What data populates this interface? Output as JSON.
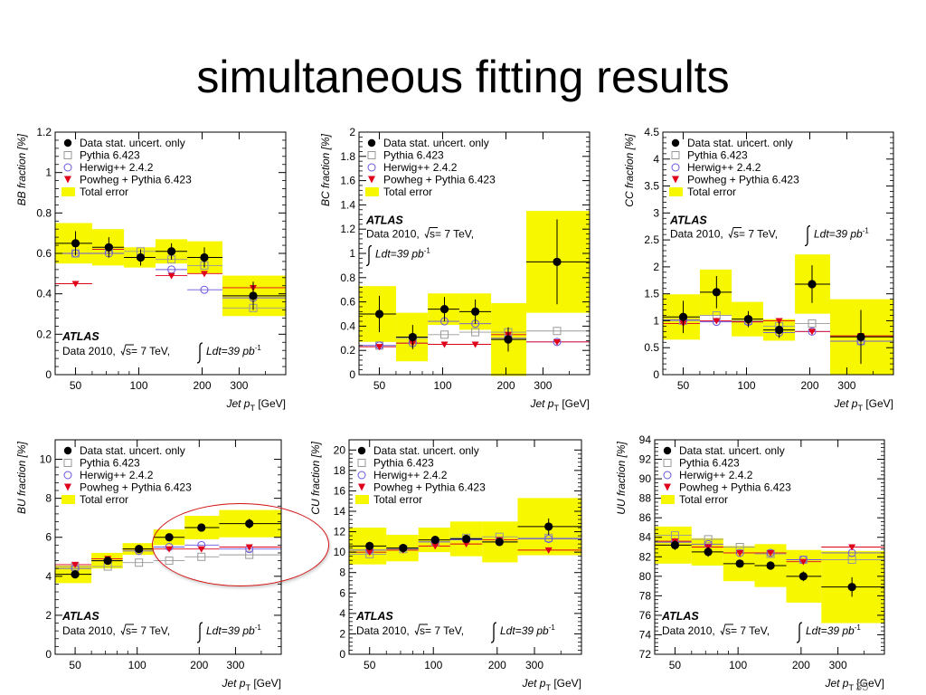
{
  "slide": {
    "title": "simultaneous fitting results",
    "page_number": "35",
    "highlight_color": "#d11111"
  },
  "legend": {
    "data": "Data stat. uncert. only",
    "pythia": "Pythia 6.423",
    "herwig": "Herwig++ 2.4.2",
    "powheg": "Powheg + Pythia 6.423",
    "total": "Total error"
  },
  "labels": {
    "atlas": "ATLAS",
    "data2010": "Data 2010,",
    "sqrt_s": "s= 7 TeV,",
    "ldt": "Ldt=39 pb",
    "ldt_sup": "-1",
    "xlabel": "Jet p",
    "xlabel_sub": "T",
    "xlabel_unit": " [GeV]"
  },
  "colors": {
    "band": "#f7f700",
    "data": "#000000",
    "pythia": "#999999",
    "herwig": "#6b55e0",
    "powheg": "#e0001b"
  },
  "chart_data": [
    {
      "id": "BB",
      "type": "scatter",
      "ylabel": "BB fraction [%]",
      "ylim": [
        0,
        1.2
      ],
      "yticks": [
        0,
        0.2,
        0.4,
        0.6,
        0.8,
        1,
        1.2
      ],
      "xlim": [
        40,
        500
      ],
      "xticks": [
        50,
        100,
        200,
        300
      ],
      "log_x": true,
      "bins": [
        [
          40,
          60
        ],
        [
          60,
          85
        ],
        [
          85,
          120
        ],
        [
          120,
          170
        ],
        [
          170,
          250
        ],
        [
          250,
          500
        ]
      ],
      "x": [
        50,
        72,
        102,
        143,
        205,
        350
      ],
      "data": [
        0.65,
        0.63,
        0.58,
        0.61,
        0.58,
        0.39
      ],
      "stat_err": [
        0.06,
        0.05,
        0.04,
        0.04,
        0.05,
        0.07
      ],
      "total_err": [
        0.1,
        0.09,
        0.05,
        0.06,
        0.08,
        0.1
      ],
      "pythia": [
        0.6,
        0.62,
        0.61,
        0.57,
        0.54,
        0.33
      ],
      "herwig": [
        0.6,
        0.6,
        0.58,
        0.52,
        0.42,
        0.38
      ],
      "powheg": [
        0.45,
        0.62,
        0.58,
        0.49,
        0.5,
        0.43
      ],
      "atlas_position": "bottom-left"
    },
    {
      "id": "BC",
      "type": "scatter",
      "ylabel": "BC fraction [%]",
      "ylim": [
        0,
        2
      ],
      "yticks": [
        0,
        0.2,
        0.4,
        0.6,
        0.8,
        1,
        1.2,
        1.4,
        1.6,
        1.8,
        2
      ],
      "xlim": [
        40,
        500
      ],
      "xticks": [
        50,
        100,
        200,
        300
      ],
      "log_x": true,
      "bins": [
        [
          40,
          60
        ],
        [
          60,
          85
        ],
        [
          85,
          120
        ],
        [
          120,
          170
        ],
        [
          170,
          250
        ],
        [
          250,
          500
        ]
      ],
      "x": [
        50,
        72,
        102,
        143,
        205,
        350
      ],
      "data": [
        0.5,
        0.31,
        0.54,
        0.52,
        0.29,
        0.93
      ],
      "stat_err": [
        0.15,
        0.1,
        0.1,
        0.1,
        0.1,
        0.35
      ],
      "total_err": [
        0.23,
        0.2,
        0.13,
        0.15,
        0.3,
        0.42
      ],
      "pythia": [
        0.24,
        0.3,
        0.33,
        0.35,
        0.35,
        0.36
      ],
      "herwig": [
        0.24,
        0.26,
        0.44,
        0.42,
        0.3,
        0.27
      ],
      "powheg": [
        0.23,
        0.26,
        0.25,
        0.25,
        0.33,
        0.27
      ],
      "atlas_position": "top-left"
    },
    {
      "id": "CC",
      "type": "scatter",
      "ylabel": "CC fraction [%]",
      "ylim": [
        0,
        4.5
      ],
      "yticks": [
        0,
        0.5,
        1,
        1.5,
        2,
        2.5,
        3,
        3.5,
        4,
        4.5
      ],
      "xlim": [
        40,
        500
      ],
      "xticks": [
        50,
        100,
        200,
        300
      ],
      "log_x": true,
      "bins": [
        [
          40,
          60
        ],
        [
          60,
          85
        ],
        [
          85,
          120
        ],
        [
          120,
          170
        ],
        [
          170,
          250
        ],
        [
          250,
          500
        ]
      ],
      "x": [
        50,
        72,
        102,
        143,
        205,
        350
      ],
      "data": [
        1.07,
        1.53,
        1.03,
        0.83,
        1.68,
        0.7
      ],
      "stat_err": [
        0.3,
        0.3,
        0.15,
        0.15,
        0.35,
        0.5
      ],
      "total_err": [
        0.42,
        0.42,
        0.32,
        0.2,
        0.55,
        0.7
      ],
      "pythia": [
        1.0,
        1.1,
        1.0,
        0.9,
        0.95,
        0.62
      ],
      "herwig": [
        1.02,
        0.98,
        0.98,
        0.78,
        0.8,
        0.62
      ],
      "powheg": [
        0.95,
        1.0,
        0.98,
        1.0,
        0.8,
        0.72
      ],
      "atlas_position": "top-left"
    },
    {
      "id": "BU",
      "type": "scatter",
      "ylabel": "BU fraction [%]",
      "ylim": [
        0,
        11
      ],
      "yticks": [
        0,
        2,
        4,
        6,
        8,
        10
      ],
      "xlim": [
        40,
        500
      ],
      "xticks": [
        50,
        100,
        200,
        300
      ],
      "log_x": true,
      "bins": [
        [
          40,
          60
        ],
        [
          60,
          85
        ],
        [
          85,
          120
        ],
        [
          120,
          170
        ],
        [
          170,
          250
        ],
        [
          250,
          500
        ]
      ],
      "x": [
        50,
        72,
        102,
        143,
        205,
        350
      ],
      "data": [
        4.1,
        4.8,
        5.4,
        6.0,
        6.5,
        6.7
      ],
      "stat_err": [
        0.2,
        0.2,
        0.1,
        0.1,
        0.15,
        0.25
      ],
      "total_err": [
        0.45,
        0.4,
        0.3,
        0.4,
        0.6,
        0.7
      ],
      "pythia": [
        4.5,
        4.5,
        4.7,
        4.8,
        5.0,
        5.1
      ],
      "herwig": [
        4.4,
        4.8,
        5.3,
        5.5,
        5.6,
        5.4
      ],
      "powheg": [
        4.6,
        4.9,
        5.4,
        5.4,
        5.4,
        5.5
      ],
      "atlas_position": "bottom-left"
    },
    {
      "id": "CU",
      "type": "scatter",
      "ylabel": "CU fraction [%]",
      "ylim": [
        0,
        21
      ],
      "yticks": [
        0,
        2,
        4,
        6,
        8,
        10,
        12,
        14,
        16,
        18,
        20
      ],
      "xlim": [
        40,
        500
      ],
      "xticks": [
        50,
        100,
        200,
        300
      ],
      "log_x": true,
      "bins": [
        [
          40,
          60
        ],
        [
          60,
          85
        ],
        [
          85,
          120
        ],
        [
          120,
          170
        ],
        [
          170,
          250
        ],
        [
          250,
          500
        ]
      ],
      "x": [
        50,
        72,
        102,
        143,
        205,
        350
      ],
      "data": [
        10.6,
        10.4,
        11.2,
        11.3,
        11.0,
        12.5
      ],
      "stat_err": [
        0.4,
        0.4,
        0.3,
        0.3,
        0.4,
        0.8
      ],
      "total_err": [
        1.8,
        1.3,
        1.2,
        1.7,
        2.0,
        2.8
      ],
      "pythia": [
        9.8,
        10.3,
        11.0,
        11.4,
        11.5,
        11.4
      ],
      "herwig": [
        10.2,
        10.4,
        11.0,
        11.2,
        11.0,
        11.3
      ],
      "powheg": [
        10.0,
        10.2,
        10.6,
        10.8,
        11.2,
        10.2
      ],
      "atlas_position": "bottom-left"
    },
    {
      "id": "UU",
      "type": "scatter",
      "ylabel": "UU fraction [%]",
      "ylim": [
        72,
        94
      ],
      "yticks": [
        72,
        74,
        76,
        78,
        80,
        82,
        84,
        86,
        88,
        90,
        92,
        94
      ],
      "xlim": [
        40,
        500
      ],
      "xticks": [
        50,
        100,
        200,
        300
      ],
      "log_x": true,
      "bins": [
        [
          40,
          60
        ],
        [
          60,
          85
        ],
        [
          85,
          120
        ],
        [
          120,
          170
        ],
        [
          170,
          250
        ],
        [
          250,
          500
        ]
      ],
      "x": [
        50,
        72,
        102,
        143,
        205,
        350
      ],
      "data": [
        83.2,
        82.5,
        81.3,
        81.1,
        80.0,
        78.9
      ],
      "stat_err": [
        0.5,
        0.5,
        0.3,
        0.3,
        0.5,
        1.0
      ],
      "total_err": [
        1.9,
        1.4,
        1.8,
        2.2,
        2.7,
        3.7
      ],
      "pythia": [
        84.2,
        83.8,
        83.0,
        82.3,
        81.7,
        81.7
      ],
      "herwig": [
        83.5,
        83.3,
        82.4,
        82.4,
        81.7,
        82.4
      ],
      "powheg": [
        83.6,
        83.0,
        82.4,
        82.4,
        81.5,
        83.0
      ],
      "atlas_position": "bottom-left"
    }
  ]
}
